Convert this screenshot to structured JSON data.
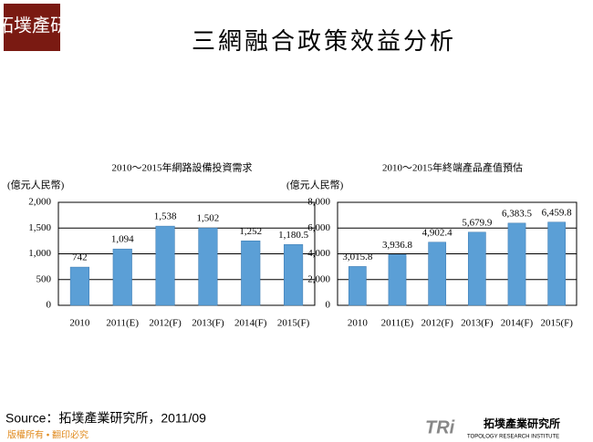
{
  "title": "三網融合政策效益分析",
  "logo": {
    "top": "拓墣產研",
    "bottom_name": "拓墣產業研究所",
    "bottom_en": "TOPOLOGY RESEARCH INSTITUTE"
  },
  "source": "Source：拓墣產業研究所，2011/09",
  "footer": "版權所有 • 翻印必究",
  "chart_data": [
    {
      "type": "bar",
      "title": "2010～2015年網路設備投資需求",
      "y_label": "(億元人民幣)",
      "categories": [
        "2010",
        "2011(E)",
        "2012(F)",
        "2013(F)",
        "2014(F)",
        "2015(F)"
      ],
      "values": [
        742,
        1094,
        1538,
        1502,
        1252,
        1180.5
      ],
      "value_labels": [
        "742",
        "1,094",
        "1,538",
        "1,502",
        "1,252",
        "1,180.5"
      ],
      "color": "#5b9fd6",
      "ylim": [
        0,
        2000
      ],
      "yticks": [
        0,
        500,
        {
          "value": 1000,
          "label": "1,000"
        },
        {
          "value": 1500,
          "label": "1,500"
        },
        {
          "value": 2000,
          "label": "2,000"
        }
      ],
      "grid": true
    },
    {
      "type": "bar",
      "title": "2010～2015年終端產品產值預估",
      "y_label": "(億元人民幣)",
      "categories": [
        "2010",
        "2011(E)",
        "2012(F)",
        "2013(F)",
        "2014(F)",
        "2015(F)"
      ],
      "values": [
        3015.8,
        3936.8,
        4902.4,
        5679.9,
        6383.5,
        6459.8
      ],
      "value_labels": [
        "3,015.8",
        "3,936.8",
        "4,902.4",
        "5,679.9",
        "6,383.5",
        "6,459.8"
      ],
      "color": "#5b9fd6",
      "ylim": [
        0,
        8000
      ],
      "yticks": [
        0,
        {
          "value": 2000,
          "label": "2,000"
        },
        {
          "value": 4000,
          "label": "4,000"
        },
        {
          "value": 6000,
          "label": "6,000"
        },
        {
          "value": 8000,
          "label": "8,000"
        }
      ],
      "grid": true
    }
  ]
}
